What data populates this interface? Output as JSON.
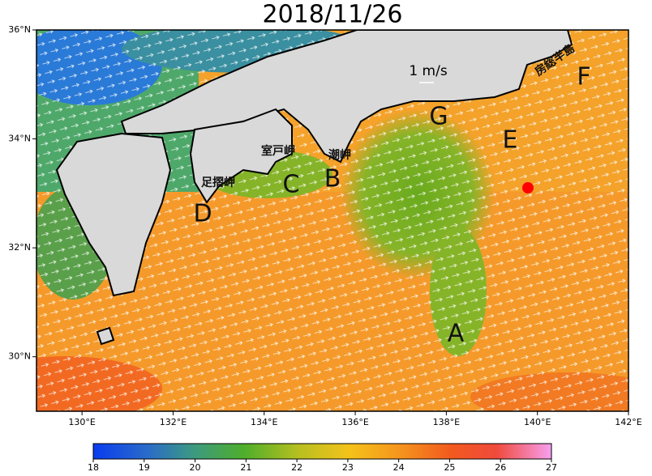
{
  "chart_data": {
    "type": "map",
    "title": "2018/11/26",
    "xlim": [
      129,
      142
    ],
    "ylim": [
      29,
      36
    ],
    "xticks": [
      {
        "value": 130,
        "label": "130°E"
      },
      {
        "value": 132,
        "label": "132°E"
      },
      {
        "value": 134,
        "label": "134°E"
      },
      {
        "value": 136,
        "label": "136°E"
      },
      {
        "value": 138,
        "label": "138°E"
      },
      {
        "value": 140,
        "label": "140°E"
      },
      {
        "value": 142,
        "label": "142°E"
      }
    ],
    "yticks": [
      {
        "value": 30,
        "label": "30°N"
      },
      {
        "value": 32,
        "label": "32°N"
      },
      {
        "value": 34,
        "label": "34°N"
      },
      {
        "value": 36,
        "label": "36°N"
      }
    ],
    "colorbar": {
      "lim": [
        18,
        27
      ],
      "ticks": [
        18,
        19,
        20,
        21,
        22,
        23,
        24,
        25,
        26,
        27
      ]
    },
    "scale_label": "1 m/s",
    "point_labels": [
      "A",
      "B",
      "C",
      "D",
      "E",
      "F",
      "G"
    ],
    "place_names": [
      "室戸岬",
      "足摺岬",
      "潮岬",
      "房総半島"
    ]
  }
}
